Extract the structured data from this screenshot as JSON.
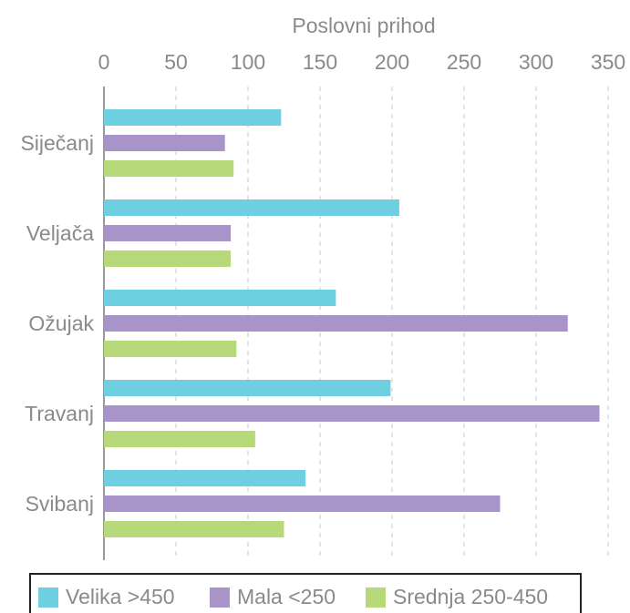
{
  "chart_data": {
    "type": "bar",
    "orientation": "horizontal",
    "x_label": "Poslovni prihod",
    "categories": [
      "Siječanj",
      "Veljača",
      "Ožujak",
      "Travanj",
      "Svibanj"
    ],
    "series": [
      {
        "name": "Velika >450",
        "color": "#6ecfe0",
        "values": [
          123,
          205,
          161,
          199,
          140
        ]
      },
      {
        "name": "Mala <250",
        "color": "#a994c9",
        "values": [
          84,
          88,
          322,
          344,
          275
        ]
      },
      {
        "name": "Srednja 250-450",
        "color": "#b8d97a",
        "values": [
          90,
          88,
          92,
          105,
          125
        ]
      }
    ],
    "xlim": [
      0,
      350
    ],
    "xticks": [
      0,
      50,
      100,
      150,
      200,
      250,
      300,
      350
    ],
    "grid": true,
    "legend": "bottom"
  }
}
